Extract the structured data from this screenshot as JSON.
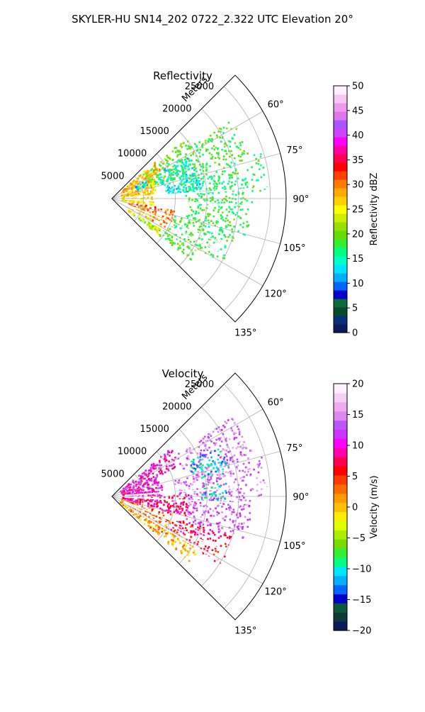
{
  "figure": {
    "title": "SKYLER-HU  SN14_202  0722_2.322 UTC Elevation 20°"
  },
  "chart_data": [
    {
      "type": "heatmap",
      "projection": "polar-sector",
      "title": "Reflectivity",
      "range_axis_label": "Meters",
      "range_ticks": [
        5000,
        10000,
        15000,
        20000,
        25000
      ],
      "range_tick_labels": [
        "5000",
        "10000",
        "15000",
        "20000",
        "25000"
      ],
      "range_max": 27500,
      "azimuth_range_deg": [
        45,
        135
      ],
      "azimuth_ticks_deg": [
        60,
        75,
        90,
        105,
        120,
        135
      ],
      "azimuth_tick_labels": [
        "60°",
        "75°",
        "90°",
        "105°",
        "120°",
        "135°"
      ],
      "grid": true,
      "colorbar": {
        "label": "Reflectivity dBZ",
        "min": 0,
        "max": 50,
        "ticks": [
          0,
          5,
          10,
          15,
          20,
          25,
          30,
          35,
          40,
          45,
          50
        ],
        "tick_labels": [
          "0",
          "5",
          "10",
          "15",
          "20",
          "25",
          "30",
          "35",
          "40",
          "45",
          "50"
        ],
        "stops": [
          "#0b1a5c",
          "#0a2f7a",
          "#0a4a2a",
          "#0a6a3a",
          "#0000cc",
          "#0066ff",
          "#00b0ff",
          "#00e5ff",
          "#00ffc8",
          "#00ff80",
          "#33ee33",
          "#66dd00",
          "#99e000",
          "#ccee00",
          "#ffff00",
          "#ffd000",
          "#ffaa00",
          "#ff7a00",
          "#ff4000",
          "#ff0000",
          "#ff0050",
          "#ff00a0",
          "#ff00ff",
          "#cc44ff",
          "#aa55ff",
          "#dd77ee",
          "#ee99ee",
          "#f6c6f4",
          "#fff0ff"
        ]
      },
      "fields": [
        {
          "az": [
            50,
            56
          ],
          "r": [
            6000,
            15000
          ],
          "value": 20
        },
        {
          "az": [
            56,
            72
          ],
          "r": [
            6000,
            22500
          ],
          "value": 19
        },
        {
          "az": [
            72,
            88
          ],
          "r": [
            11000,
            24500
          ],
          "value": 17
        },
        {
          "az": [
            88,
            105
          ],
          "r": [
            12000,
            22000
          ],
          "value": 18
        },
        {
          "az": [
            105,
            120
          ],
          "r": [
            10000,
            20000
          ],
          "value": 18
        },
        {
          "az": [
            120,
            128
          ],
          "r": [
            5000,
            16000
          ],
          "value": 19
        },
        {
          "az": [
            48,
            62
          ],
          "r": [
            1500,
            9000
          ],
          "value": 28
        },
        {
          "az": [
            62,
            80
          ],
          "r": [
            1500,
            7000
          ],
          "value": 27
        },
        {
          "az": [
            80,
            100
          ],
          "r": [
            1500,
            6500
          ],
          "value": 26
        },
        {
          "az": [
            100,
            118
          ],
          "r": [
            2500,
            10000
          ],
          "value": 30
        },
        {
          "az": [
            118,
            128
          ],
          "r": [
            3000,
            9000
          ],
          "value": 24
        },
        {
          "az": [
            58,
            85
          ],
          "r": [
            8000,
            14000
          ],
          "value": 14
        },
        {
          "az": [
            60,
            70
          ],
          "r": [
            4000,
            6500
          ],
          "value": 13
        }
      ]
    },
    {
      "type": "heatmap",
      "projection": "polar-sector",
      "title": "Velocity",
      "range_axis_label": "Meters",
      "range_ticks": [
        5000,
        10000,
        15000,
        20000,
        25000
      ],
      "range_tick_labels": [
        "5000",
        "10000",
        "15000",
        "20000",
        "25000"
      ],
      "range_max": 27500,
      "azimuth_range_deg": [
        45,
        135
      ],
      "azimuth_ticks_deg": [
        60,
        75,
        90,
        105,
        120,
        135
      ],
      "azimuth_tick_labels": [
        "60°",
        "75°",
        "90°",
        "105°",
        "120°",
        "135°"
      ],
      "grid": true,
      "colorbar": {
        "label": "Velocity (m/s)",
        "min": -20,
        "max": 20,
        "ticks": [
          -20,
          -15,
          -10,
          -5,
          0,
          5,
          10,
          15,
          20
        ],
        "tick_labels": [
          "−20",
          "−15",
          "−10",
          "−5",
          "0",
          "5",
          "10",
          "15",
          "20"
        ],
        "stops": [
          "#0b1a5c",
          "#0a3a3a",
          "#0a5a3a",
          "#0000cc",
          "#0066ff",
          "#00b0ff",
          "#00e5ff",
          "#00ff80",
          "#33ee33",
          "#77dd00",
          "#aaee00",
          "#ddff00",
          "#ffee00",
          "#ffc000",
          "#ff9a00",
          "#ff6a00",
          "#ff3a00",
          "#ff0000",
          "#ff0050",
          "#ff00aa",
          "#ff00ff",
          "#cc33ff",
          "#bb55ff",
          "#dd88ee",
          "#eeaaee",
          "#f6d0f4",
          "#fff0ff"
        ]
      },
      "fields": [
        {
          "az": [
            50,
            65
          ],
          "r": [
            1500,
            12000
          ],
          "value": 10
        },
        {
          "az": [
            65,
            88
          ],
          "r": [
            1500,
            8000
          ],
          "value": 10
        },
        {
          "az": [
            56,
            75
          ],
          "r": [
            12000,
            23000
          ],
          "value": 14
        },
        {
          "az": [
            75,
            90
          ],
          "r": [
            10000,
            24500
          ],
          "value": 14
        },
        {
          "az": [
            88,
            105
          ],
          "r": [
            1500,
            12000
          ],
          "value": 8
        },
        {
          "az": [
            90,
            108
          ],
          "r": [
            12000,
            22000
          ],
          "value": 13
        },
        {
          "az": [
            105,
            120
          ],
          "r": [
            1500,
            10000
          ],
          "value": 3
        },
        {
          "az": [
            108,
            122
          ],
          "r": [
            10000,
            20000
          ],
          "value": 7
        },
        {
          "az": [
            120,
            130
          ],
          "r": [
            1500,
            16000
          ],
          "value": 1
        },
        {
          "az": [
            65,
            78
          ],
          "r": [
            13000,
            19000
          ],
          "value": -11
        },
        {
          "az": [
            82,
            92
          ],
          "r": [
            14000,
            18000
          ],
          "value": -10
        }
      ]
    }
  ]
}
